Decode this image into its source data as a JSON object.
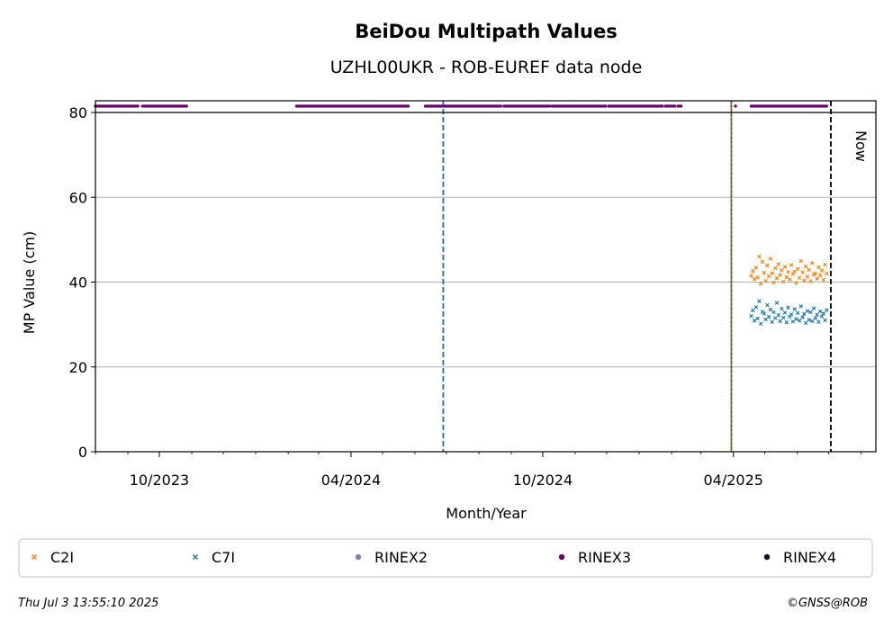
{
  "chart_data": {
    "type": "scatter",
    "title": "BeiDou Multipath Values",
    "subtitle": "UZHL00UKR - ROB-EUREF data node",
    "xlabel": "Month/Year",
    "ylabel": "MP Value (cm)",
    "ylim": [
      0,
      80
    ],
    "xlim": [
      "2023-08-01",
      "2025-08-15"
    ],
    "y_ticks": [
      0,
      20,
      40,
      60,
      80
    ],
    "x_ticks": [
      {
        "date": "2023-10-01",
        "label": "10/2023"
      },
      {
        "date": "2024-04-01",
        "label": "04/2024"
      },
      {
        "date": "2024-10-01",
        "label": "10/2024"
      },
      {
        "date": "2025-04-01",
        "label": "04/2025"
      }
    ],
    "grid": "horizontal",
    "now_label": "Now",
    "vertical_lines": [
      {
        "date": "2024-06-28",
        "color": "#1f6fb4",
        "style": "dashed"
      },
      {
        "date": "2025-03-30",
        "color": "#2ca02c",
        "style": "solid"
      },
      {
        "date": "2025-03-30",
        "color": "#d62728",
        "style": "dotted"
      },
      {
        "date": "2025-07-03",
        "color": "#000000",
        "style": "dashed"
      }
    ],
    "availability": {
      "series": "RINEX3",
      "y": 81.5,
      "ranges": [
        [
          "2023-08-01",
          "2023-09-11"
        ],
        [
          "2023-09-15",
          "2023-10-28"
        ],
        [
          "2024-02-09",
          "2024-05-26"
        ],
        [
          "2024-06-11",
          "2024-08-22"
        ],
        [
          "2024-08-25",
          "2024-10-08"
        ],
        [
          "2024-10-10",
          "2024-12-01"
        ],
        [
          "2024-12-03",
          "2025-01-23"
        ],
        [
          "2025-01-26",
          "2025-02-04"
        ],
        [
          "2025-02-07",
          "2025-02-10"
        ],
        [
          "2025-04-18",
          "2025-06-29"
        ]
      ],
      "singles": [
        "2025-04-03"
      ]
    },
    "series": [
      {
        "name": "C2I",
        "color": "#ff7f0e",
        "marker": "x",
        "x_range": [
          "2025-04-18",
          "2025-06-29"
        ],
        "values": [
          41.5,
          42.6,
          40.7,
          43.4,
          41.1,
          46.0,
          39.6,
          44.8,
          42.2,
          40.3,
          43.9,
          41.4,
          45.5,
          42.1,
          39.9,
          43.3,
          40.9,
          44.2,
          41.7,
          42.8,
          40.1,
          43.6,
          41.2,
          42.4,
          40.6,
          44.0,
          41.9,
          42.5,
          39.8,
          43.1,
          41.0,
          45.0,
          42.3,
          40.4,
          43.7,
          41.3,
          42.9,
          40.2,
          44.5,
          41.8,
          42.0,
          40.8,
          43.5,
          41.6,
          42.7,
          40.5,
          44.1,
          42.0
        ]
      },
      {
        "name": "C7I",
        "color": "#1f77b4",
        "marker": "x",
        "x_range": [
          "2025-04-18",
          "2025-06-29"
        ],
        "values": [
          32.0,
          33.3,
          30.9,
          34.1,
          31.4,
          35.5,
          30.2,
          33.0,
          32.6,
          31.2,
          34.6,
          31.8,
          33.5,
          30.6,
          32.9,
          31.5,
          35.1,
          32.2,
          30.8,
          33.7,
          31.6,
          32.8,
          30.5,
          34.0,
          31.9,
          32.4,
          30.7,
          33.6,
          31.3,
          32.7,
          30.9,
          34.3,
          31.7,
          32.5,
          30.4,
          33.2,
          31.1,
          32.9,
          30.8,
          33.8,
          31.5,
          32.3,
          30.6,
          33.1,
          31.9,
          32.6,
          31.0,
          33.4
        ]
      }
    ],
    "legend": {
      "position": "bottom",
      "items": [
        {
          "label": "C2I",
          "color": "#ff7f0e",
          "marker": "x"
        },
        {
          "label": "C7I",
          "color": "#1f77b4",
          "marker": "x"
        },
        {
          "label": "RINEX2",
          "color": "#8080c0",
          "marker": "dot"
        },
        {
          "label": "RINEX3",
          "color": "#6a006a",
          "marker": "dot"
        },
        {
          "label": "RINEX4",
          "color": "#1a0a2a",
          "marker": "dot"
        }
      ]
    }
  },
  "footer": {
    "timestamp": "Thu Jul  3 13:55:10 2025",
    "copyright": "©GNSS@ROB"
  }
}
